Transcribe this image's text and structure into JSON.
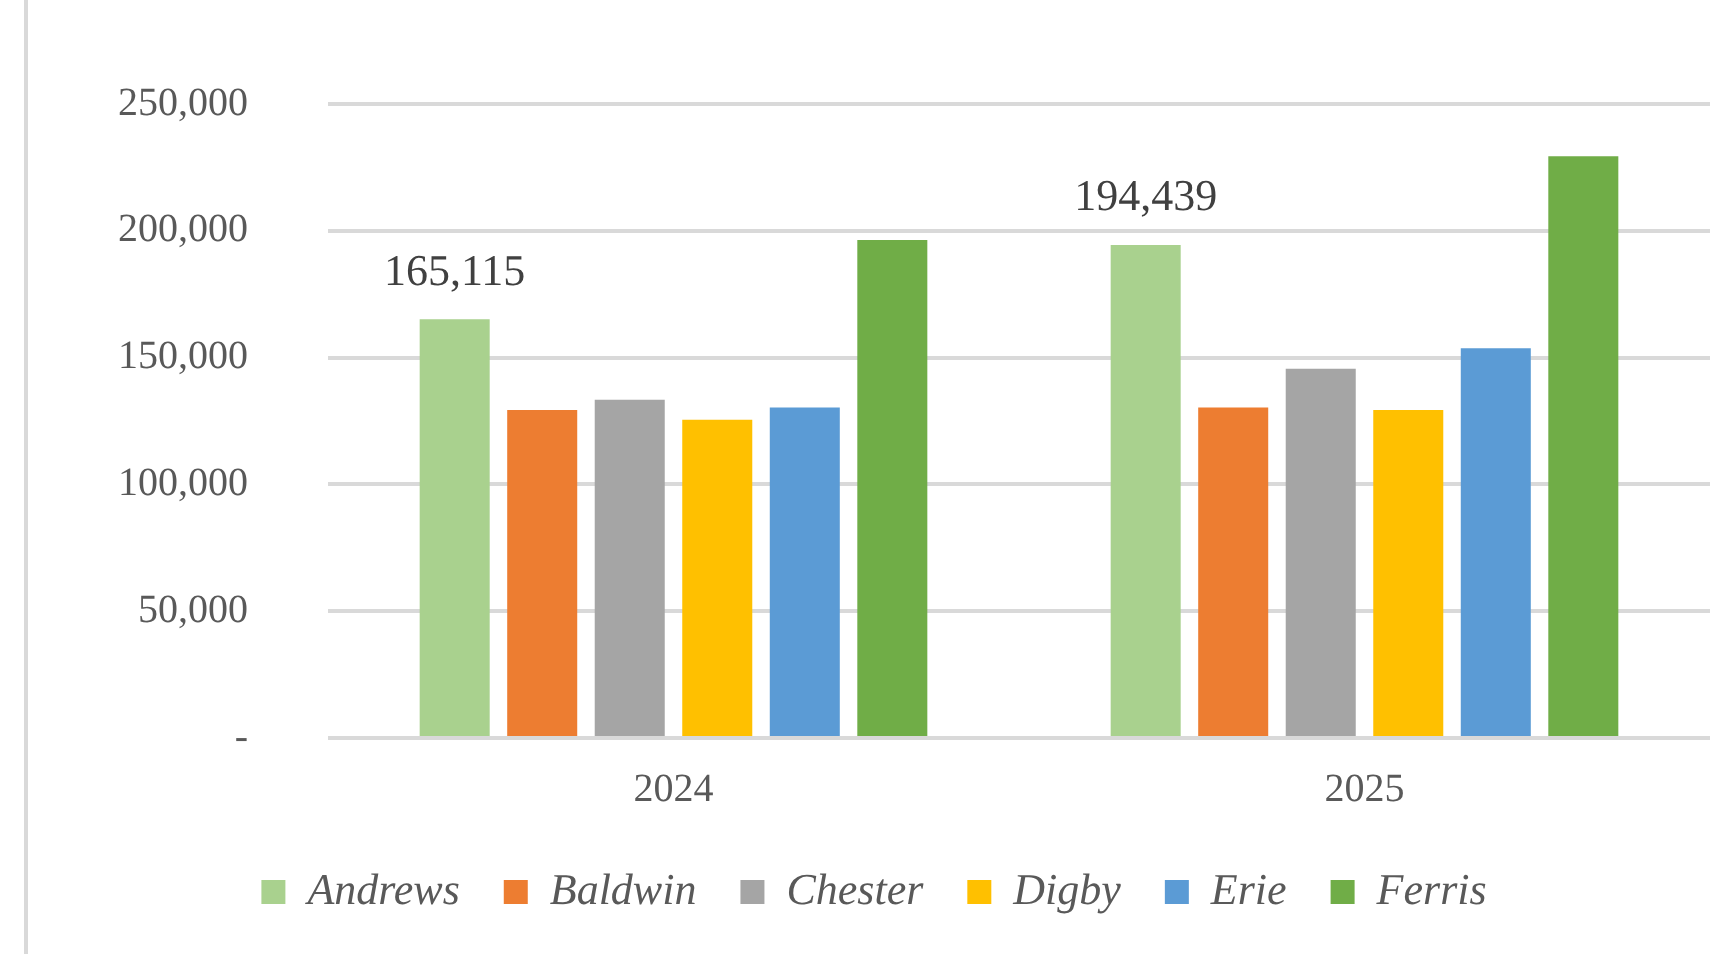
{
  "chart_data": {
    "type": "bar",
    "categories": [
      "2024",
      "2025"
    ],
    "series": [
      {
        "name": "Andrews",
        "color": "#a9d18e",
        "values": [
          165115,
          194439
        ],
        "value_labels": [
          "165,115",
          "194,439"
        ]
      },
      {
        "name": "Baldwin",
        "color": "#ed7d31",
        "values": [
          129300,
          130300
        ]
      },
      {
        "name": "Chester",
        "color": "#a5a5a5",
        "values": [
          133400,
          145600
        ]
      },
      {
        "name": "Digby",
        "color": "#ffc000",
        "values": [
          125500,
          129300
        ]
      },
      {
        "name": "Erie",
        "color": "#5b9bd5",
        "values": [
          130300,
          153700
        ]
      },
      {
        "name": "Ferris",
        "color": "#70ad47",
        "values": [
          196400,
          229400
        ]
      }
    ],
    "ylim": [
      0,
      250000
    ],
    "yticks": [
      {
        "value": 0,
        "label": "-"
      },
      {
        "value": 50000,
        "label": "50,000"
      },
      {
        "value": 100000,
        "label": "100,000"
      },
      {
        "value": 150000,
        "label": "150,000"
      },
      {
        "value": 200000,
        "label": "200,000"
      },
      {
        "value": 250000,
        "label": "250,000"
      }
    ],
    "grid": "y",
    "legend": "bottom"
  }
}
